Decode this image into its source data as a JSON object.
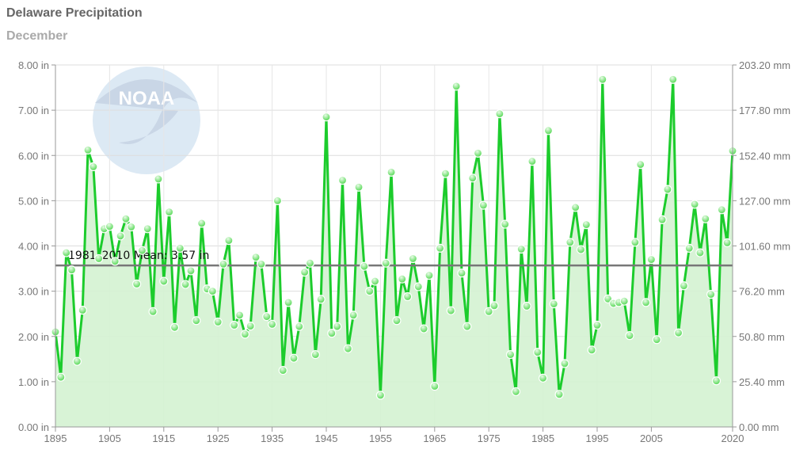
{
  "chart_data": {
    "type": "line",
    "title": "Delaware Precipitation",
    "subtitle": "December",
    "x_start": 1895,
    "x_end": 2020,
    "values": [
      2.1,
      1.1,
      3.85,
      3.47,
      1.45,
      2.58,
      6.12,
      5.75,
      3.72,
      4.38,
      4.43,
      3.66,
      4.22,
      4.6,
      4.42,
      3.16,
      3.9,
      4.38,
      2.55,
      5.48,
      3.22,
      4.75,
      2.2,
      3.95,
      3.15,
      3.45,
      2.35,
      4.5,
      3.05,
      3.0,
      2.32,
      3.6,
      4.12,
      2.25,
      2.47,
      2.05,
      2.23,
      3.75,
      3.6,
      2.44,
      2.27,
      5.0,
      1.25,
      2.75,
      1.52,
      2.22,
      3.42,
      3.62,
      1.6,
      2.82,
      6.85,
      2.07,
      2.22,
      5.45,
      1.73,
      2.47,
      5.3,
      3.55,
      3.0,
      3.22,
      0.7,
      3.62,
      5.63,
      2.35,
      3.27,
      2.88,
      3.72,
      3.1,
      2.17,
      3.35,
      0.9,
      3.95,
      5.6,
      2.57,
      7.53,
      3.4,
      2.22,
      5.5,
      6.05,
      4.9,
      2.55,
      2.68,
      6.92,
      4.48,
      1.6,
      0.78,
      3.93,
      2.67,
      5.87,
      1.65,
      1.08,
      6.55,
      2.72,
      0.72,
      1.4,
      4.08,
      4.85,
      3.92,
      4.47,
      1.7,
      2.25,
      7.68,
      2.83,
      2.73,
      2.75,
      2.78,
      2.02,
      4.08,
      5.8,
      2.75,
      3.7,
      1.93,
      4.58,
      5.25,
      7.68,
      2.08,
      3.12,
      3.95,
      4.92,
      3.85,
      4.6,
      2.93,
      1.02,
      4.8,
      4.07,
      6.1
    ],
    "ylim": [
      0,
      8
    ],
    "y_ticks_left": [
      "0.00 in",
      "1.00 in",
      "2.00 in",
      "3.00 in",
      "4.00 in",
      "5.00 in",
      "6.00 in",
      "7.00 in",
      "8.00 in"
    ],
    "y_ticks_right": [
      "0.00 mm",
      "25.40 mm",
      "50.80 mm",
      "76.20 mm",
      "101.60 mm",
      "127.00 mm",
      "152.40 mm",
      "177.80 mm",
      "203.20 mm"
    ],
    "x_ticks": [
      "1895",
      "1905",
      "1915",
      "1925",
      "1935",
      "1945",
      "1955",
      "1965",
      "1975",
      "1985",
      "1995",
      "2005",
      "2020"
    ],
    "x_tick_years": [
      1895,
      1905,
      1915,
      1925,
      1935,
      1945,
      1955,
      1965,
      1975,
      1985,
      1995,
      2005,
      2020
    ],
    "mean": 3.57,
    "mean_label": "1981–2010 Mean: 3.57 in",
    "grid": true,
    "colors": {
      "line": "#1ccc2c",
      "fill": "#d4f2d2",
      "mean": "#777777",
      "logo": "#dce9f4"
    },
    "logo_text": "NOAA"
  }
}
